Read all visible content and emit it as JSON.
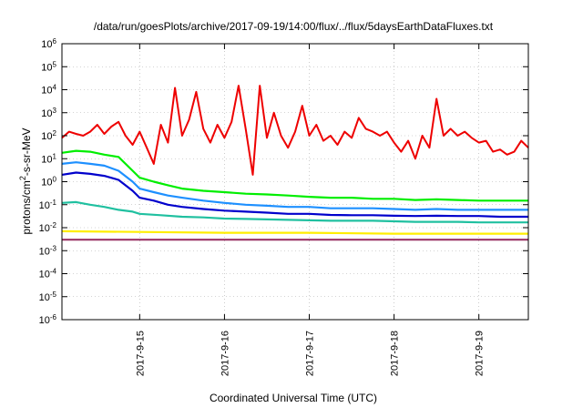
{
  "chart_data": {
    "type": "line",
    "title": "/data/run/goesPlots/archive/2017-09-19/14:00/flux/../flux/5daysEarthDataFluxes.txt",
    "xlabel": "Coordinated Universal Time (UTC)",
    "ylabel": {
      "prefix": "protons/cm",
      "sup": "2",
      "suffix": "-s-sr-MeV"
    },
    "y_scale": "log",
    "ylim": [
      1e-06,
      1000000.0
    ],
    "xlim": [
      "2017-09-14T02:00",
      "2017-09-19T14:00"
    ],
    "grid": true,
    "legend": "none",
    "y_ticks": [
      {
        "value": 1e-06,
        "base": "10",
        "exp": "-6"
      },
      {
        "value": 1e-05,
        "base": "10",
        "exp": "-5"
      },
      {
        "value": 0.0001,
        "base": "10",
        "exp": "-4"
      },
      {
        "value": 0.001,
        "base": "10",
        "exp": "-3"
      },
      {
        "value": 0.01,
        "base": "10",
        "exp": "-2"
      },
      {
        "value": 0.1,
        "base": "10",
        "exp": "-1"
      },
      {
        "value": 1,
        "base": "10",
        "exp": "0"
      },
      {
        "value": 10.0,
        "base": "10",
        "exp": "1"
      },
      {
        "value": 100.0,
        "base": "10",
        "exp": "2"
      },
      {
        "value": 1000.0,
        "base": "10",
        "exp": "3"
      },
      {
        "value": 10000.0,
        "base": "10",
        "exp": "4"
      },
      {
        "value": 100000.0,
        "base": "10",
        "exp": "5"
      },
      {
        "value": 1000000.0,
        "base": "10",
        "exp": "6"
      }
    ],
    "x_ticks": [
      {
        "time": "2017-09-15T00:00",
        "label": "2017-9-15"
      },
      {
        "time": "2017-09-16T00:00",
        "label": "2017-9-16"
      },
      {
        "time": "2017-09-17T00:00",
        "label": "2017-9-17"
      },
      {
        "time": "2017-09-18T00:00",
        "label": "2017-9-18"
      },
      {
        "time": "2017-09-19T00:00",
        "label": "2017-9-19"
      }
    ],
    "series": [
      {
        "color": "#ee0000",
        "points": [
          [
            "2017-09-14T02:00",
            80
          ],
          [
            "2017-09-14T04:00",
            150
          ],
          [
            "2017-09-14T06:00",
            120
          ],
          [
            "2017-09-14T08:00",
            100
          ],
          [
            "2017-09-14T10:00",
            150
          ],
          [
            "2017-09-14T12:00",
            300
          ],
          [
            "2017-09-14T14:00",
            120
          ],
          [
            "2017-09-14T16:00",
            250
          ],
          [
            "2017-09-14T18:00",
            400
          ],
          [
            "2017-09-14T20:00",
            100
          ],
          [
            "2017-09-14T22:00",
            40
          ],
          [
            "2017-09-15T00:00",
            150
          ],
          [
            "2017-09-15T02:00",
            30
          ],
          [
            "2017-09-15T04:00",
            6
          ],
          [
            "2017-09-15T06:00",
            300
          ],
          [
            "2017-09-15T08:00",
            50
          ],
          [
            "2017-09-15T10:00",
            12000
          ],
          [
            "2017-09-15T12:00",
            100
          ],
          [
            "2017-09-15T14:00",
            500
          ],
          [
            "2017-09-15T16:00",
            8000
          ],
          [
            "2017-09-15T18:00",
            200
          ],
          [
            "2017-09-15T20:00",
            50
          ],
          [
            "2017-09-15T22:00",
            300
          ],
          [
            "2017-09-16T00:00",
            80
          ],
          [
            "2017-09-16T02:00",
            400
          ],
          [
            "2017-09-16T04:00",
            15000
          ],
          [
            "2017-09-16T06:00",
            200
          ],
          [
            "2017-09-16T08:00",
            2
          ],
          [
            "2017-09-16T10:00",
            15000
          ],
          [
            "2017-09-16T12:00",
            80
          ],
          [
            "2017-09-16T14:00",
            1000
          ],
          [
            "2017-09-16T16:00",
            100
          ],
          [
            "2017-09-16T18:00",
            30
          ],
          [
            "2017-09-16T20:00",
            150
          ],
          [
            "2017-09-16T22:00",
            2000
          ],
          [
            "2017-09-17T00:00",
            100
          ],
          [
            "2017-09-17T02:00",
            300
          ],
          [
            "2017-09-17T04:00",
            60
          ],
          [
            "2017-09-17T06:00",
            100
          ],
          [
            "2017-09-17T08:00",
            40
          ],
          [
            "2017-09-17T10:00",
            150
          ],
          [
            "2017-09-17T12:00",
            80
          ],
          [
            "2017-09-17T14:00",
            600
          ],
          [
            "2017-09-17T16:00",
            200
          ],
          [
            "2017-09-17T18:00",
            150
          ],
          [
            "2017-09-17T20:00",
            100
          ],
          [
            "2017-09-17T22:00",
            150
          ],
          [
            "2017-09-18T00:00",
            50
          ],
          [
            "2017-09-18T02:00",
            20
          ],
          [
            "2017-09-18T04:00",
            60
          ],
          [
            "2017-09-18T06:00",
            10
          ],
          [
            "2017-09-18T08:00",
            100
          ],
          [
            "2017-09-18T10:00",
            30
          ],
          [
            "2017-09-18T12:00",
            4000
          ],
          [
            "2017-09-18T14:00",
            100
          ],
          [
            "2017-09-18T16:00",
            200
          ],
          [
            "2017-09-18T18:00",
            100
          ],
          [
            "2017-09-18T20:00",
            150
          ],
          [
            "2017-09-18T22:00",
            80
          ],
          [
            "2017-09-19T00:00",
            50
          ],
          [
            "2017-09-19T02:00",
            60
          ],
          [
            "2017-09-19T04:00",
            20
          ],
          [
            "2017-09-19T06:00",
            25
          ],
          [
            "2017-09-19T08:00",
            15
          ],
          [
            "2017-09-19T10:00",
            20
          ],
          [
            "2017-09-19T12:00",
            60
          ],
          [
            "2017-09-19T14:00",
            30
          ]
        ]
      },
      {
        "color": "#00ee00",
        "points": [
          [
            "2017-09-14T02:00",
            18
          ],
          [
            "2017-09-14T06:00",
            22
          ],
          [
            "2017-09-14T10:00",
            20
          ],
          [
            "2017-09-14T14:00",
            15
          ],
          [
            "2017-09-14T18:00",
            12
          ],
          [
            "2017-09-14T22:00",
            3
          ],
          [
            "2017-09-15T00:00",
            1.5
          ],
          [
            "2017-09-15T04:00",
            1.0
          ],
          [
            "2017-09-15T08:00",
            0.7
          ],
          [
            "2017-09-15T12:00",
            0.5
          ],
          [
            "2017-09-15T18:00",
            0.4
          ],
          [
            "2017-09-16T00:00",
            0.35
          ],
          [
            "2017-09-16T06:00",
            0.3
          ],
          [
            "2017-09-16T12:00",
            0.28
          ],
          [
            "2017-09-16T18:00",
            0.25
          ],
          [
            "2017-09-17T00:00",
            0.22
          ],
          [
            "2017-09-17T06:00",
            0.2
          ],
          [
            "2017-09-17T12:00",
            0.2
          ],
          [
            "2017-09-17T18:00",
            0.18
          ],
          [
            "2017-09-18T00:00",
            0.18
          ],
          [
            "2017-09-18T06:00",
            0.16
          ],
          [
            "2017-09-18T12:00",
            0.17
          ],
          [
            "2017-09-18T18:00",
            0.16
          ],
          [
            "2017-09-19T00:00",
            0.15
          ],
          [
            "2017-09-19T06:00",
            0.15
          ],
          [
            "2017-09-19T14:00",
            0.15
          ]
        ]
      },
      {
        "color": "#1e90ff",
        "points": [
          [
            "2017-09-14T02:00",
            6
          ],
          [
            "2017-09-14T06:00",
            7
          ],
          [
            "2017-09-14T10:00",
            6
          ],
          [
            "2017-09-14T14:00",
            5
          ],
          [
            "2017-09-14T18:00",
            3
          ],
          [
            "2017-09-14T22:00",
            1
          ],
          [
            "2017-09-15T00:00",
            0.5
          ],
          [
            "2017-09-15T04:00",
            0.35
          ],
          [
            "2017-09-15T08:00",
            0.25
          ],
          [
            "2017-09-15T12:00",
            0.2
          ],
          [
            "2017-09-15T18:00",
            0.15
          ],
          [
            "2017-09-16T00:00",
            0.12
          ],
          [
            "2017-09-16T06:00",
            0.1
          ],
          [
            "2017-09-16T12:00",
            0.09
          ],
          [
            "2017-09-16T18:00",
            0.08
          ],
          [
            "2017-09-17T00:00",
            0.08
          ],
          [
            "2017-09-17T06:00",
            0.07
          ],
          [
            "2017-09-17T12:00",
            0.07
          ],
          [
            "2017-09-17T18:00",
            0.07
          ],
          [
            "2017-09-18T00:00",
            0.065
          ],
          [
            "2017-09-18T06:00",
            0.06
          ],
          [
            "2017-09-18T12:00",
            0.065
          ],
          [
            "2017-09-18T18:00",
            0.06
          ],
          [
            "2017-09-19T00:00",
            0.06
          ],
          [
            "2017-09-19T06:00",
            0.06
          ],
          [
            "2017-09-19T14:00",
            0.06
          ]
        ]
      },
      {
        "color": "#0000cc",
        "points": [
          [
            "2017-09-14T02:00",
            2
          ],
          [
            "2017-09-14T06:00",
            2.5
          ],
          [
            "2017-09-14T10:00",
            2.2
          ],
          [
            "2017-09-14T14:00",
            1.8
          ],
          [
            "2017-09-14T18:00",
            1.2
          ],
          [
            "2017-09-14T22:00",
            0.4
          ],
          [
            "2017-09-15T00:00",
            0.2
          ],
          [
            "2017-09-15T04:00",
            0.15
          ],
          [
            "2017-09-15T08:00",
            0.1
          ],
          [
            "2017-09-15T12:00",
            0.08
          ],
          [
            "2017-09-15T18:00",
            0.065
          ],
          [
            "2017-09-16T00:00",
            0.055
          ],
          [
            "2017-09-16T06:00",
            0.05
          ],
          [
            "2017-09-16T12:00",
            0.045
          ],
          [
            "2017-09-16T18:00",
            0.04
          ],
          [
            "2017-09-17T00:00",
            0.04
          ],
          [
            "2017-09-17T06:00",
            0.036
          ],
          [
            "2017-09-17T12:00",
            0.035
          ],
          [
            "2017-09-17T18:00",
            0.035
          ],
          [
            "2017-09-18T00:00",
            0.033
          ],
          [
            "2017-09-18T06:00",
            0.032
          ],
          [
            "2017-09-18T12:00",
            0.033
          ],
          [
            "2017-09-18T18:00",
            0.032
          ],
          [
            "2017-09-19T00:00",
            0.032
          ],
          [
            "2017-09-19T06:00",
            0.03
          ],
          [
            "2017-09-19T14:00",
            0.03
          ]
        ]
      },
      {
        "color": "#20c0a0",
        "points": [
          [
            "2017-09-14T02:00",
            0.12
          ],
          [
            "2017-09-14T06:00",
            0.13
          ],
          [
            "2017-09-14T10:00",
            0.1
          ],
          [
            "2017-09-14T14:00",
            0.08
          ],
          [
            "2017-09-14T18:00",
            0.06
          ],
          [
            "2017-09-14T22:00",
            0.05
          ],
          [
            "2017-09-15T00:00",
            0.04
          ],
          [
            "2017-09-15T06:00",
            0.035
          ],
          [
            "2017-09-15T12:00",
            0.03
          ],
          [
            "2017-09-15T18:00",
            0.028
          ],
          [
            "2017-09-16T00:00",
            0.025
          ],
          [
            "2017-09-16T06:00",
            0.024
          ],
          [
            "2017-09-16T12:00",
            0.023
          ],
          [
            "2017-09-16T18:00",
            0.022
          ],
          [
            "2017-09-17T00:00",
            0.021
          ],
          [
            "2017-09-17T06:00",
            0.02
          ],
          [
            "2017-09-17T12:00",
            0.02
          ],
          [
            "2017-09-17T18:00",
            0.02
          ],
          [
            "2017-09-18T00:00",
            0.019
          ],
          [
            "2017-09-18T06:00",
            0.018
          ],
          [
            "2017-09-18T12:00",
            0.018
          ],
          [
            "2017-09-18T18:00",
            0.018
          ],
          [
            "2017-09-19T00:00",
            0.017
          ],
          [
            "2017-09-19T06:00",
            0.017
          ],
          [
            "2017-09-19T14:00",
            0.017
          ]
        ]
      },
      {
        "color": "#ffee00",
        "points": [
          [
            "2017-09-14T02:00",
            0.007
          ],
          [
            "2017-09-15T00:00",
            0.0065
          ],
          [
            "2017-09-16T00:00",
            0.006
          ],
          [
            "2017-09-17T00:00",
            0.006
          ],
          [
            "2017-09-18T00:00",
            0.0055
          ],
          [
            "2017-09-19T00:00",
            0.0055
          ],
          [
            "2017-09-19T14:00",
            0.0055
          ]
        ]
      },
      {
        "color": "#993366",
        "points": [
          [
            "2017-09-14T02:00",
            0.003
          ],
          [
            "2017-09-15T00:00",
            0.003
          ],
          [
            "2017-09-16T00:00",
            0.003
          ],
          [
            "2017-09-17T00:00",
            0.003
          ],
          [
            "2017-09-18T00:00",
            0.003
          ],
          [
            "2017-09-19T00:00",
            0.003
          ],
          [
            "2017-09-19T14:00",
            0.003
          ]
        ]
      }
    ]
  }
}
